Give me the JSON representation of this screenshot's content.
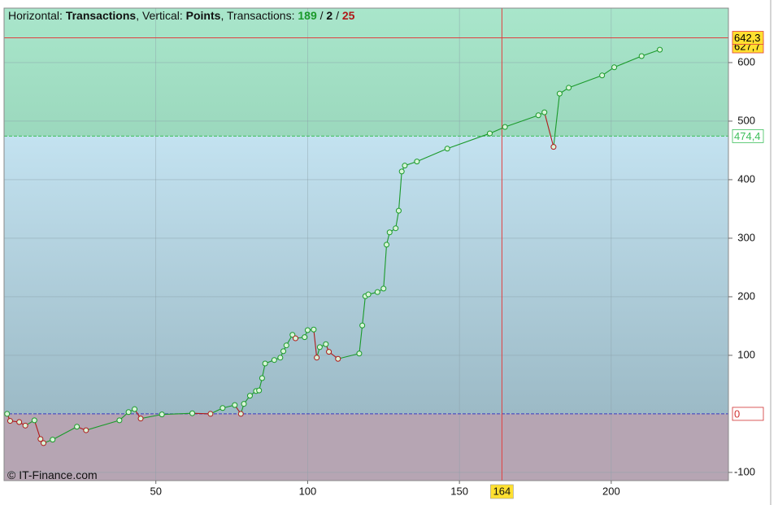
{
  "chart_data": {
    "type": "line",
    "header": {
      "h_label": "Horizontal: ",
      "h_value": "Transactions",
      "v_label": ", Vertical: ",
      "v_value": "Points",
      "t_label": ", Transactions: ",
      "wins": 189,
      "sep1": " / ",
      "even": 2,
      "sep2": " / ",
      "losses": 25
    },
    "watermark": "© IT-Finance.com",
    "x": [
      1,
      2,
      5,
      7,
      10,
      12,
      13,
      16,
      24,
      27,
      38,
      41,
      43,
      45,
      52,
      62,
      68,
      72,
      76,
      78,
      79,
      81,
      83,
      84,
      85,
      86,
      89,
      91,
      92,
      93,
      95,
      96,
      99,
      100,
      102,
      103,
      104,
      106,
      107,
      110,
      117,
      118,
      119,
      120,
      123,
      125,
      126,
      127,
      129,
      130,
      131,
      132,
      136,
      146,
      160,
      165,
      176,
      178,
      181,
      183,
      186,
      197,
      201,
      210,
      216
    ],
    "values": [
      0,
      -12,
      -14,
      -20,
      -11,
      -43,
      -50,
      -44,
      -22,
      -28,
      -11,
      3,
      8,
      -8,
      -1,
      1,
      0,
      10,
      15,
      0,
      17,
      31,
      39,
      40,
      61,
      86,
      92,
      96,
      107,
      117,
      135,
      129,
      131,
      143,
      144,
      96,
      114,
      119,
      106,
      94,
      103,
      151,
      201,
      204,
      208,
      214,
      289,
      310,
      317,
      347,
      414,
      424,
      431,
      453,
      479,
      490,
      510,
      515,
      456,
      547,
      557,
      578,
      592,
      611,
      622
    ],
    "up_color": "#1a9a2a",
    "down_color": "#b01818",
    "xlim": [
      0,
      238.6
    ],
    "ylim": [
      -114,
      693
    ],
    "xticks": [
      50,
      100,
      150,
      200
    ],
    "yticks": [
      -100,
      100,
      200,
      300,
      400,
      500,
      600
    ],
    "grid": true,
    "hlines": [
      {
        "value": 627.7,
        "label": "627,7",
        "color": "#e04040",
        "line": false,
        "label_fill": "#ffe030",
        "label_color": "#000000"
      },
      {
        "value": 642.3,
        "label": "642,3",
        "color": "#e04040",
        "line": true,
        "dashed": false,
        "label_fill": "#ffe030",
        "label_color": "#000000"
      },
      {
        "value": 474.4,
        "label": "474,4",
        "color": "#3cbf5a",
        "line": true,
        "dashed": true,
        "label_fill": "#ffffff",
        "label_color": "#3cbf5a"
      },
      {
        "value": 0,
        "color": "#3a3ac0",
        "line": true,
        "dashed": true,
        "label_fill": "#ffffff",
        "label_color": "#d03030",
        "label_border": "#d03030"
      }
    ],
    "vline": {
      "value": 164,
      "color": "#e04040",
      "label_fill": "#ffe030"
    }
  }
}
